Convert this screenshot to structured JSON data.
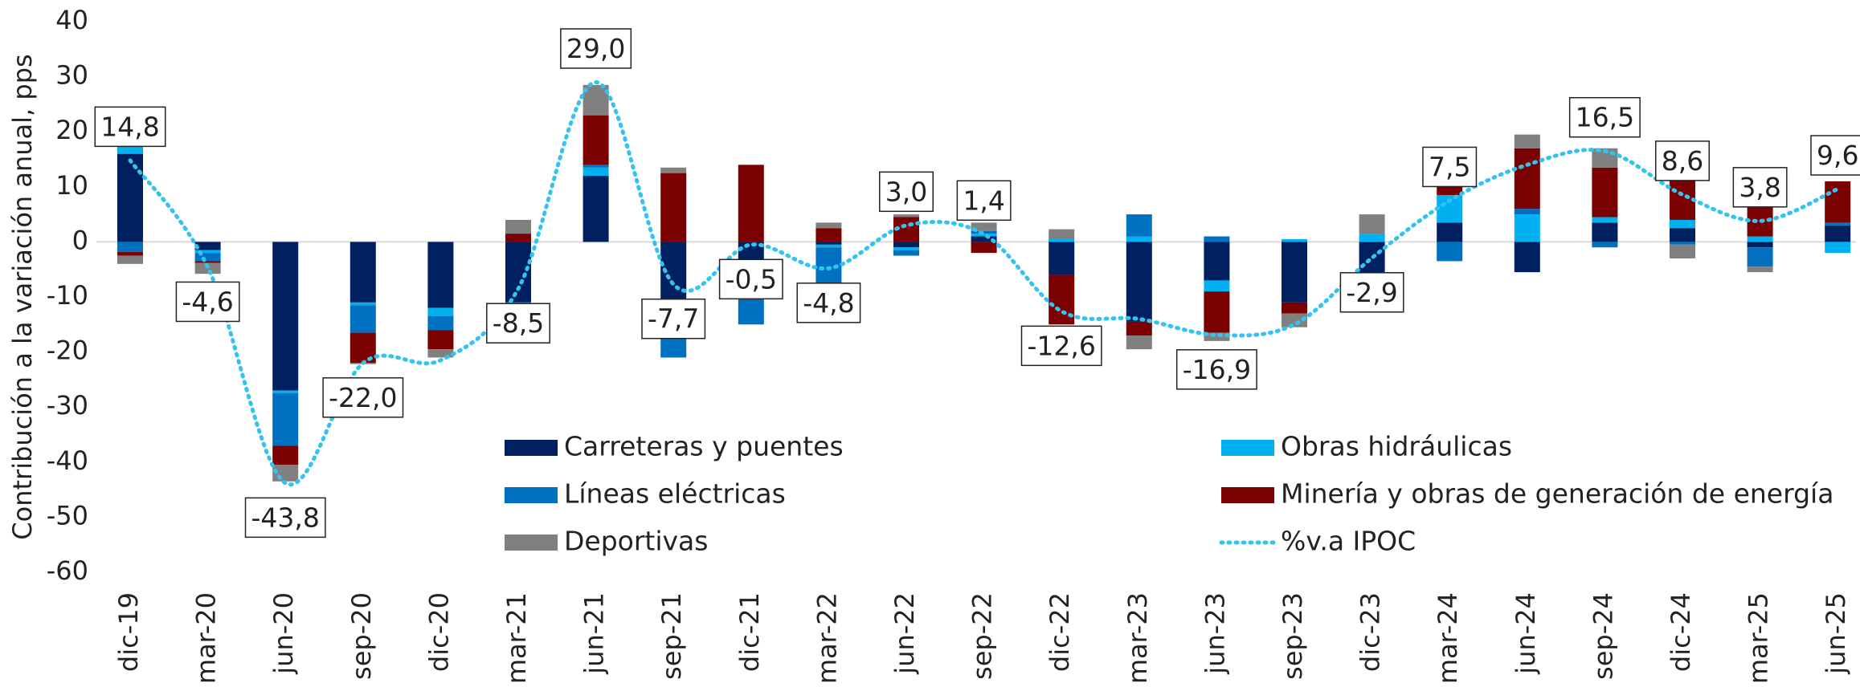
{
  "chart_data": {
    "type": "bar",
    "y_label": "Contribución a la variación anual, pps",
    "categories": [
      "dic-19",
      "mar-20",
      "jun-20",
      "sep-20",
      "dic-20",
      "mar-21",
      "jun-21",
      "sep-21",
      "dic-21",
      "mar-22",
      "jun-22",
      "sep-22",
      "dic-22",
      "mar-23",
      "jun-23",
      "sep-23",
      "dic-23",
      "mar-24",
      "jun-24",
      "sep-24",
      "dic-24",
      "mar-25",
      "jun-25"
    ],
    "series": [
      {
        "name": "Carreteras y puentes",
        "color": "#002060",
        "values": [
          16,
          -1.5,
          -27,
          -11,
          -12,
          -11,
          12,
          -15,
          -8,
          -0.5,
          -1,
          1,
          -6,
          -14.5,
          -7,
          -11,
          -6,
          3.5,
          -5.5,
          3.5,
          2.5,
          -1,
          3
        ]
      },
      {
        "name": "Obras hidráulicas",
        "color": "#00b0f0",
        "values": [
          2.5,
          -0.5,
          -0.5,
          -0.5,
          -1.5,
          -2,
          1.5,
          -2,
          -0.5,
          -0.5,
          -0.5,
          0.5,
          0.5,
          1,
          -2,
          0.5,
          1.5,
          5,
          5,
          1,
          1.5,
          1,
          -2
        ]
      },
      {
        "name": "Líneas eléctricas",
        "color": "#0070c0",
        "values": [
          -1.8,
          -1.5,
          -9.5,
          -5,
          -2.5,
          -0.3,
          0.5,
          -4,
          -6.5,
          -7,
          -1,
          0.5,
          0,
          4,
          1,
          0,
          -1,
          -3.5,
          1,
          -1,
          -0.5,
          -3.5,
          0.5
        ]
      },
      {
        "name": "Minería y obras de generación de energía",
        "color": "#7b0000",
        "values": [
          -0.7,
          -0.3,
          -3.5,
          -5.5,
          -3.5,
          1.5,
          9,
          12.5,
          14,
          2.5,
          4.5,
          -2,
          -9,
          -2.5,
          -7.5,
          -2,
          -0.5,
          1.5,
          11,
          9,
          7.5,
          8.5,
          7.5
        ]
      },
      {
        "name": "Deportivas",
        "color": "#808080",
        "values": [
          -1.5,
          -2,
          -3,
          -0.2,
          -1.5,
          2.5,
          5.5,
          1,
          0,
          1,
          0.5,
          1.5,
          1.8,
          -2.5,
          -1.5,
          -2.5,
          3.5,
          1,
          2.5,
          3.5,
          -2.5,
          -1,
          0
        ]
      }
    ],
    "line": {
      "name": "%v.a IPOC",
      "color": "#33c3f0",
      "values": [
        14.8,
        -4.6,
        -43.8,
        -22.0,
        -21.5,
        -8.5,
        29.0,
        -7.7,
        -0.5,
        -4.8,
        3.0,
        1.4,
        -12.6,
        -14,
        -16.9,
        -15,
        -2.9,
        7.5,
        14,
        16.5,
        8.6,
        3.8,
        9.6
      ],
      "value_labels": [
        "14,8",
        "-4,6",
        "-43,8",
        "-22,0",
        null,
        "-8,5",
        "29,0",
        "-7,7",
        "-0,5",
        "-4,8",
        "3,0",
        "1,4",
        "-12,6",
        null,
        "-16,9",
        null,
        "-2,9",
        "7,5",
        null,
        "16,5",
        "8,6",
        "3,8",
        "9,6"
      ]
    },
    "ylim": [
      -60,
      40
    ],
    "yticks": [
      -60,
      -50,
      -40,
      -30,
      -20,
      -10,
      0,
      10,
      20,
      30,
      40
    ],
    "grid": false
  }
}
